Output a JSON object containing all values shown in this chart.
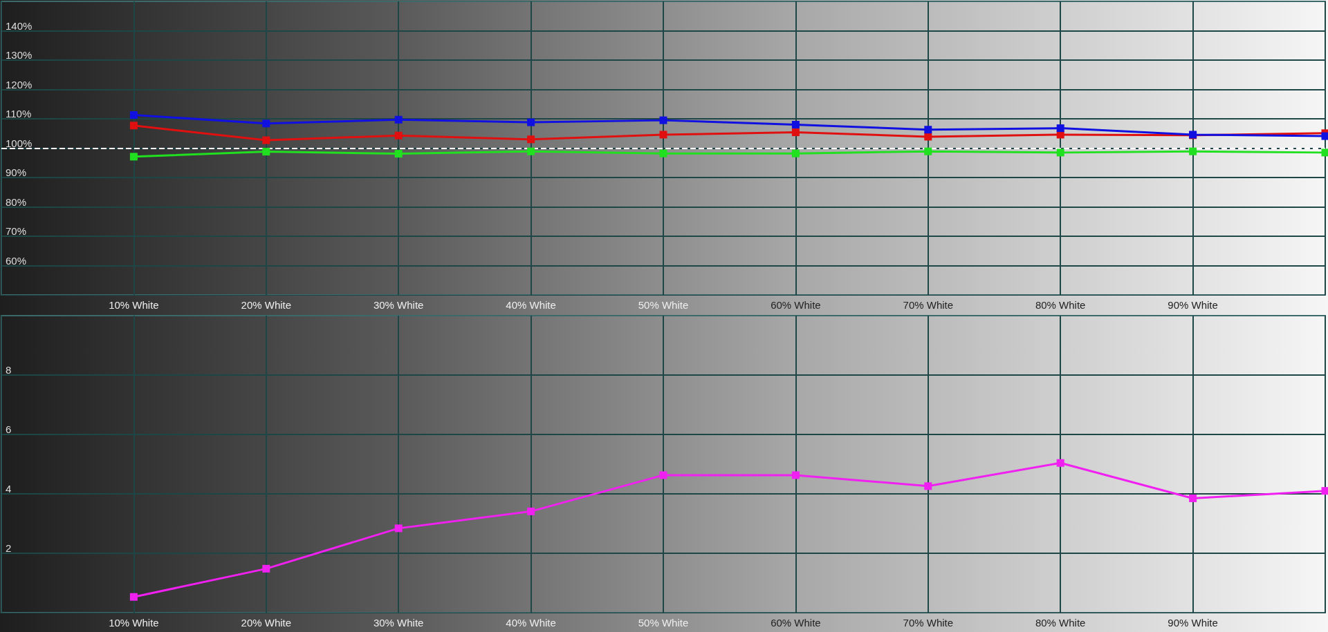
{
  "chart_data": [
    {
      "type": "line",
      "x": [
        10,
        20,
        30,
        40,
        50,
        60,
        70,
        80,
        90,
        100
      ],
      "xlim": [
        0,
        100
      ],
      "xticks": [
        {
          "value": 10,
          "label": "10% White"
        },
        {
          "value": 20,
          "label": "20% White"
        },
        {
          "value": 30,
          "label": "30% White"
        },
        {
          "value": 40,
          "label": "40% White"
        },
        {
          "value": 50,
          "label": "50% White"
        },
        {
          "value": 60,
          "label": "60% White"
        },
        {
          "value": 70,
          "label": "70% White"
        },
        {
          "value": 80,
          "label": "80% White"
        },
        {
          "value": 90,
          "label": "90% White"
        },
        {
          "value": 100,
          "label": null
        }
      ],
      "ylim": [
        50,
        150
      ],
      "yticks": [
        {
          "value": 60,
          "label": "60%"
        },
        {
          "value": 70,
          "label": "70%"
        },
        {
          "value": 80,
          "label": "80%"
        },
        {
          "value": 90,
          "label": "90%"
        },
        {
          "value": 100,
          "label": "100%"
        },
        {
          "value": 110,
          "label": "110%"
        },
        {
          "value": 120,
          "label": "120%"
        },
        {
          "value": 130,
          "label": "130%"
        },
        {
          "value": 140,
          "label": "140%"
        }
      ],
      "series": [
        {
          "color": "#1010e0",
          "values": [
            111.3,
            108.4,
            109.7,
            108.8,
            109.5,
            108.0,
            106.3,
            106.8,
            104.6,
            104.1
          ]
        },
        {
          "color": "#e01010",
          "values": [
            107.7,
            102.7,
            104.3,
            103.0,
            104.6,
            105.4,
            103.9,
            104.6,
            104.4,
            105.1
          ]
        },
        {
          "color": "#20e020",
          "values": [
            97.1,
            98.8,
            98.1,
            98.9,
            98.2,
            98.2,
            98.9,
            98.5,
            98.9,
            98.5
          ]
        }
      ],
      "ref_lines": [
        {
          "axis": "y",
          "value": 100,
          "label": null,
          "color": "#ffffff",
          "line_style": "dashed"
        }
      ],
      "grid": true,
      "marker": "square",
      "line_style": "solid"
    },
    {
      "type": "line",
      "x": [
        10,
        20,
        30,
        40,
        50,
        60,
        70,
        80,
        90,
        100
      ],
      "xlim": [
        0,
        100
      ],
      "xticks": [
        {
          "value": 10,
          "label": "10% White"
        },
        {
          "value": 20,
          "label": "20% White"
        },
        {
          "value": 30,
          "label": "30% White"
        },
        {
          "value": 40,
          "label": "40% White"
        },
        {
          "value": 50,
          "label": "50% White"
        },
        {
          "value": 60,
          "label": "60% White"
        },
        {
          "value": 70,
          "label": "70% White"
        },
        {
          "value": 80,
          "label": "80% White"
        },
        {
          "value": 90,
          "label": "90% White"
        },
        {
          "value": 100,
          "label": null
        }
      ],
      "ylim": [
        0,
        10
      ],
      "yticks": [
        2,
        4,
        6,
        8
      ],
      "series": [
        {
          "color": "#f020f0",
          "values": [
            0.53,
            1.48,
            2.84,
            3.41,
            4.63,
            4.63,
            4.26,
            5.04,
            3.85,
            4.1
          ]
        }
      ],
      "grid": true,
      "marker": "square",
      "line_style": "solid"
    }
  ]
}
